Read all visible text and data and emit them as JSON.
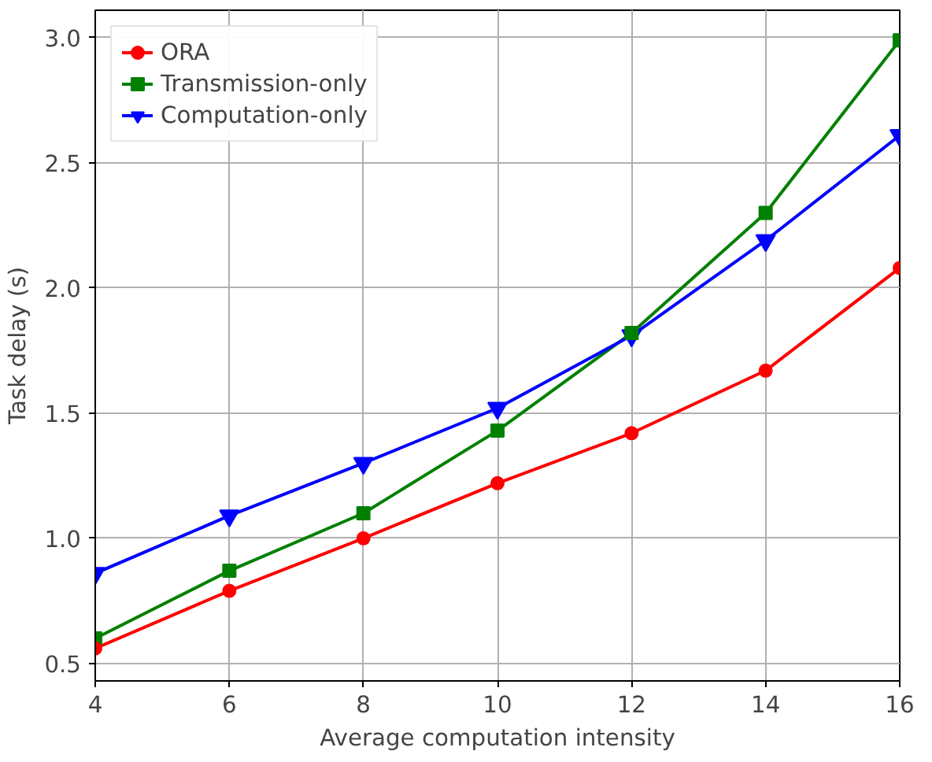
{
  "chart_data": {
    "type": "line",
    "xlabel": "Average computation intensity",
    "ylabel": "Task delay (s)",
    "x": [
      4,
      6,
      8,
      10,
      12,
      14,
      16
    ],
    "series": [
      {
        "name": "ORA",
        "color": "#ff0000",
        "marker": "circle",
        "values": [
          0.56,
          0.79,
          1.0,
          1.22,
          1.42,
          1.67,
          2.08
        ]
      },
      {
        "name": "Transmission-only",
        "color": "#008000",
        "marker": "square",
        "values": [
          0.6,
          0.87,
          1.1,
          1.43,
          1.82,
          2.3,
          2.99
        ]
      },
      {
        "name": "Computation-only",
        "color": "#0000ff",
        "marker": "triangle",
        "values": [
          0.86,
          1.09,
          1.3,
          1.52,
          1.81,
          2.19,
          2.61
        ]
      }
    ],
    "xlim": [
      4,
      16
    ],
    "ylim": [
      0.43,
      3.11
    ],
    "xticks": [
      4,
      6,
      8,
      10,
      12,
      14,
      16
    ],
    "yticks": [
      {
        "value": 0.5,
        "label": "0.5"
      },
      {
        "value": 1.0,
        "label": "1.0"
      },
      {
        "value": 1.5,
        "label": "1.5"
      },
      {
        "value": 2.0,
        "label": "2.0"
      },
      {
        "value": 2.5,
        "label": "2.5"
      },
      {
        "value": 3.0,
        "label": "3.0"
      }
    ],
    "grid": true,
    "legend": "top left",
    "line_style": "solid"
  }
}
